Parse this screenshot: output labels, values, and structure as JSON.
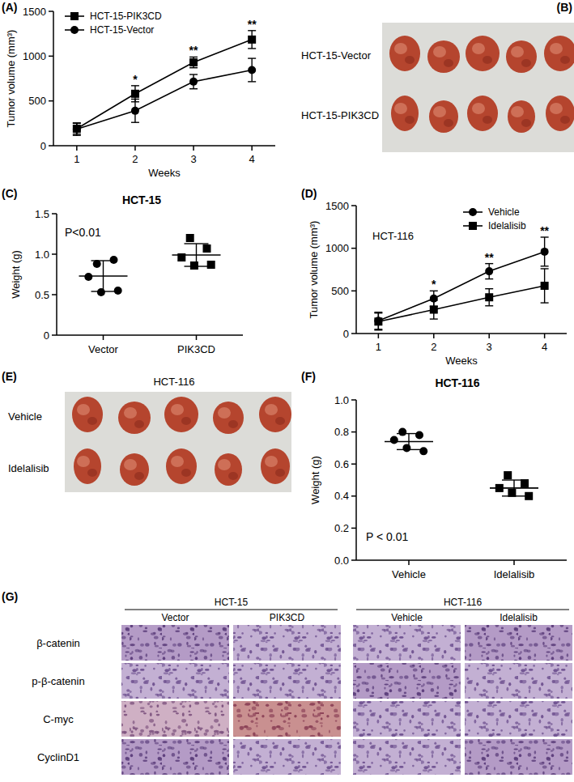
{
  "chart_data": [
    {
      "type": "line",
      "y_label": "Tumor volume (mm³)",
      "x_label": "Weeks",
      "x": [
        1,
        2,
        3,
        4
      ],
      "xlim": [
        0.6,
        4.4
      ],
      "xticks": [
        1,
        2,
        3,
        4
      ],
      "ylim": [
        0,
        1500
      ],
      "yticks": [
        0,
        500,
        1000,
        1500
      ],
      "legend": "upper-left",
      "series": [
        {
          "name": "HCT-15-PIK3CD",
          "color": "#000000",
          "marker": "square",
          "values": [
            190,
            580,
            930,
            1185
          ],
          "errors": [
            60,
            90,
            60,
            100
          ]
        },
        {
          "name": "HCT-15-Vector",
          "color": "#000000",
          "marker": "circle",
          "values": [
            185,
            390,
            715,
            845
          ],
          "errors": [
            70,
            130,
            80,
            130
          ]
        }
      ],
      "annotations": [
        {
          "x": 2,
          "text": "*"
        },
        {
          "x": 3,
          "text": "**"
        },
        {
          "x": 4,
          "text": "**"
        }
      ]
    },
    {
      "type": "dot_plot",
      "title": "HCT-15",
      "y_label": "Weight (g)",
      "color": "#000000",
      "ylim": [
        0,
        1.5
      ],
      "yticks": [
        0,
        0.5,
        {
          "value": 1,
          "label": "1.0"
        },
        1.5
      ],
      "groups": [
        {
          "label": "Vector",
          "marker": "circle",
          "values": [
            0.88,
            0.93,
            0.72,
            0.55,
            0.53
          ],
          "mean": 0.73,
          "sd": 0.19
        },
        {
          "label": "PIK3CD",
          "marker": "square",
          "values": [
            1.2,
            1.07,
            0.96,
            0.87,
            0.86
          ],
          "mean": 0.99,
          "sd": 0.14
        }
      ],
      "annotations": [
        {
          "text": "P<0.01"
        }
      ]
    },
    {
      "type": "line",
      "title": "HCT-116",
      "y_label": "Tumor volume (mm³)",
      "x_label": "Weeks",
      "x": [
        1,
        2,
        3,
        4
      ],
      "xlim": [
        0.6,
        4.4
      ],
      "xticks": [
        1,
        2,
        3,
        4
      ],
      "ylim": [
        0,
        1500
      ],
      "yticks": [
        0,
        500,
        1000,
        1500
      ],
      "legend": "upper-right",
      "series": [
        {
          "name": "Vehicle",
          "color": "#000000",
          "marker": "circle",
          "values": [
            150,
            410,
            730,
            960
          ],
          "errors": [
            100,
            90,
            90,
            170
          ]
        },
        {
          "name": "Idelalisib",
          "color": "#000000",
          "marker": "square",
          "values": [
            140,
            280,
            425,
            560
          ],
          "errors": [
            100,
            110,
            100,
            200
          ]
        }
      ],
      "annotations": [
        {
          "x": 2,
          "text": "*"
        },
        {
          "x": 3,
          "text": "**"
        },
        {
          "x": 4,
          "text": "**"
        }
      ]
    },
    {
      "type": "dot_plot",
      "title": "HCT-116",
      "y_label": "Weight (g)",
      "color": "#000000",
      "ylim": [
        0,
        1
      ],
      "yticks": [
        {
          "value": 0,
          "label": "0.0"
        },
        0.2,
        0.4,
        0.6,
        0.8,
        {
          "value": 1,
          "label": "1.0"
        }
      ],
      "groups": [
        {
          "label": "Vehicle",
          "marker": "circle",
          "values": [
            0.8,
            0.78,
            0.75,
            0.68,
            0.7
          ],
          "mean": 0.74,
          "sd": 0.05
        },
        {
          "label": "Idelalisib",
          "marker": "square",
          "values": [
            0.53,
            0.48,
            0.45,
            0.4,
            0.42
          ],
          "mean": 0.45,
          "sd": 0.05
        }
      ],
      "annotations": [
        {
          "text": "P < 0.01"
        }
      ]
    }
  ],
  "panel_labels": [
    "(A)",
    "(B)",
    "(C)",
    "(D)",
    "(E)",
    "(F)",
    "(G)"
  ],
  "photos": [
    {
      "row_labels": [
        "HCT-15-Vector",
        "HCT-15-PIK3CD"
      ]
    },
    {
      "title": "HCT-116",
      "row_labels": [
        "Vehicle",
        "Idelalisib"
      ]
    }
  ],
  "ihc": {
    "groups": [
      {
        "label": "HCT-15",
        "columns": [
          "Vector",
          "PIK3CD"
        ]
      },
      {
        "label": "HCT-116",
        "columns": [
          "Vehicle",
          "Idelalisib"
        ]
      }
    ],
    "rows": [
      "β-catenin",
      "p-β-catenin",
      "C-myc",
      "CyclinD1"
    ]
  }
}
